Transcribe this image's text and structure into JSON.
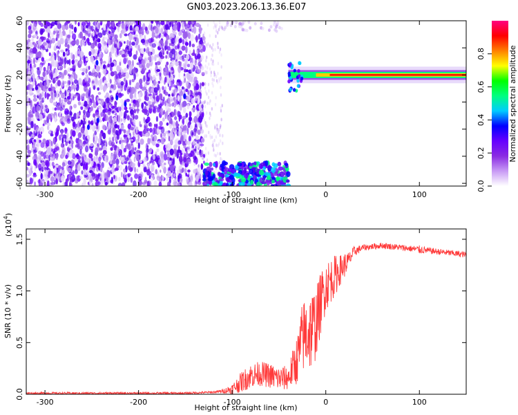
{
  "title": "GN03.2023.206.13.36.E07",
  "chart_data": [
    {
      "type": "heatmap",
      "xlabel": "Height of straight line (km)",
      "ylabel": "Frequency (Hz)",
      "xlim": [
        -320,
        150
      ],
      "ylim": [
        -62,
        60
      ],
      "x_ticks": [
        -300,
        -200,
        -100,
        0,
        100
      ],
      "y_ticks": [
        -60,
        -40,
        -20,
        0,
        20,
        40,
        60
      ],
      "regions": [
        {
          "name": "noise",
          "x": [
            -320,
            -130
          ],
          "y": [
            -62,
            60
          ],
          "amplitude": 0.3
        },
        {
          "name": "sparse-noise",
          "x": [
            -130,
            -110
          ],
          "y": [
            -62,
            60
          ],
          "amplitude": 0.1
        },
        {
          "name": "upper-blob",
          "x": [
            -110,
            -40
          ],
          "y": [
            52,
            60
          ],
          "amplitude": 0.05
        },
        {
          "name": "lower-band",
          "x": [
            -130,
            -40
          ],
          "y": [
            -62,
            -45
          ],
          "amplitude": 0.2
        },
        {
          "name": "signal-band",
          "x": [
            -40,
            150
          ],
          "y": [
            18,
            22
          ],
          "amplitude": 0.9
        }
      ],
      "colorbar": {
        "label": "Normalized spectral amplitude",
        "ticks": [
          "0.0",
          "0.2",
          "0.4",
          "0.6",
          "0.8"
        ],
        "colors": [
          "#ffffff",
          "#c89af5",
          "#8a2be2",
          "#6600ff",
          "#0000ff",
          "#00ccff",
          "#00ff80",
          "#00ff00",
          "#ffff00",
          "#ff8000",
          "#ff0000",
          "#ff0080"
        ]
      }
    },
    {
      "type": "line",
      "xlabel": "Height of straight line (km)",
      "ylabel": "SNR (10 * v/v)",
      "multiplier": "(x10",
      "multiplier_exp": "4",
      "multiplier_close": ")",
      "xlim": [
        -320,
        150
      ],
      "ylim": [
        0,
        1.6
      ],
      "x_ticks": [
        -300,
        -200,
        -100,
        0,
        100
      ],
      "y_ticks": [
        "0.0",
        "0.5",
        "1.0",
        "1.5"
      ],
      "series": [
        {
          "color": "#ff3a3a",
          "x": [
            -320,
            -250,
            -200,
            -150,
            -120,
            -110,
            -100,
            -90,
            -80,
            -70,
            -60,
            -50,
            -40,
            -30,
            -25,
            -20,
            -15,
            -10,
            -5,
            0,
            5,
            10,
            15,
            20,
            25,
            30,
            40,
            50,
            60,
            70,
            80,
            90,
            100,
            110,
            120,
            130,
            140,
            150
          ],
          "y": [
            0.01,
            0.01,
            0.01,
            0.01,
            0.02,
            0.03,
            0.05,
            0.12,
            0.18,
            0.2,
            0.18,
            0.15,
            0.16,
            0.35,
            0.55,
            0.6,
            0.62,
            0.7,
            0.9,
            1.05,
            1.1,
            1.15,
            1.2,
            1.25,
            1.3,
            1.38,
            1.42,
            1.43,
            1.44,
            1.43,
            1.42,
            1.41,
            1.4,
            1.39,
            1.38,
            1.37,
            1.36,
            1.35
          ],
          "spread": [
            0.01,
            0.01,
            0.01,
            0.01,
            0.01,
            0.02,
            0.05,
            0.1,
            0.12,
            0.12,
            0.12,
            0.12,
            0.12,
            0.25,
            0.35,
            0.4,
            0.4,
            0.35,
            0.3,
            0.25,
            0.22,
            0.2,
            0.15,
            0.12,
            0.08,
            0.05,
            0.03,
            0.03,
            0.03,
            0.03,
            0.03,
            0.03,
            0.04,
            0.03,
            0.03,
            0.03,
            0.03,
            0.03
          ]
        }
      ]
    }
  ]
}
